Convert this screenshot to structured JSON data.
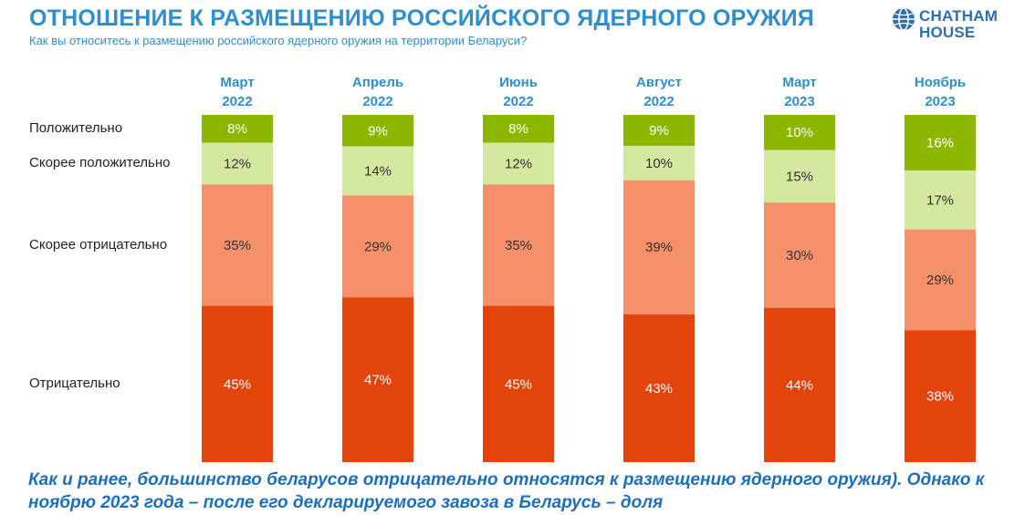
{
  "header": {
    "title": "ОТНОШЕНИЕ К РАЗМЕЩЕНИЮ РОССИЙСКОГО ЯДЕРНОГО ОРУЖИЯ",
    "subtitle": "Как вы относитесь к размещению российского ядерного оружия на территории Беларуси?"
  },
  "logo": {
    "line1": "CHATHAM",
    "line2": "HOUSE",
    "icon": "globe-icon"
  },
  "footer": {
    "text": "Как и ранее, большинство беларусов отрицательно относятся к размещению ядерного оружия). Однако к ноябрю 2023 года – после его декларируемого завоза в Беларусь – доля"
  },
  "colors": {
    "positive": "#8db600",
    "rather_positive": "#d4e8a0",
    "rather_negative": "#f6906a",
    "negative": "#e2440c",
    "heading": "#2d8fd0",
    "footer": "#1a6fc0"
  },
  "chart_data": {
    "type": "bar",
    "stacked": true,
    "normalized": true,
    "categories": [
      {
        "month": "Март",
        "year": "2022"
      },
      {
        "month": "Апрель",
        "year": "2022"
      },
      {
        "month": "Июнь",
        "year": "2022"
      },
      {
        "month": "Август",
        "year": "2022"
      },
      {
        "month": "Март",
        "year": "2023"
      },
      {
        "month": "Ноябрь",
        "year": "2023"
      }
    ],
    "series": [
      {
        "name": "Положительно",
        "color": "#8db600",
        "values": [
          8,
          9,
          8,
          9,
          10,
          16
        ]
      },
      {
        "name": "Скорее положительно",
        "color": "#d4e8a0",
        "values": [
          12,
          14,
          12,
          10,
          15,
          17
        ]
      },
      {
        "name": "Скорее отрицательно",
        "color": "#f6906a",
        "values": [
          35,
          29,
          35,
          39,
          30,
          29
        ]
      },
      {
        "name": "Отрицательно",
        "color": "#e2440c",
        "values": [
          45,
          47,
          45,
          43,
          44,
          38
        ]
      }
    ],
    "value_suffix": "%",
    "label_colors": [
      "#ffffff",
      "#333333",
      "#333333",
      "#ffffff"
    ]
  }
}
